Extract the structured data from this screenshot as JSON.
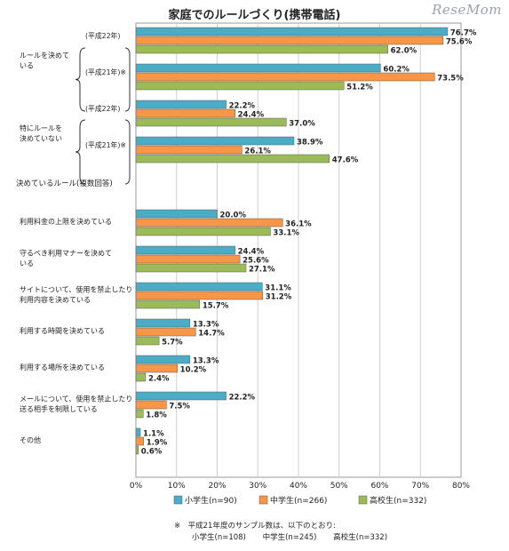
{
  "title": "家庭でのルールづくり(携帯電話)",
  "watermark": "ReseMom",
  "chart_data": {
    "type": "bar",
    "orientation": "horizontal",
    "title": "家庭でのルールづくり(携帯電話)",
    "xlim": [
      0,
      80
    ],
    "x_ticks": [
      "0%",
      "10%",
      "20%",
      "30%",
      "40%",
      "50%",
      "60%",
      "70%",
      "80%"
    ],
    "grid": true,
    "legend_placement": "bottom",
    "series": [
      {
        "name": "小学生",
        "n_label": "(n=90)",
        "color": "#4bacc6"
      },
      {
        "name": "中学生",
        "n_label": "(n=266)",
        "color": "#f79646"
      },
      {
        "name": "高校生",
        "n_label": "(n=332)",
        "color": "#9bbb59"
      }
    ],
    "groups": [
      {
        "label": "ルールを決めて\nいる",
        "year": "(平成22年)",
        "values": [
          76.7,
          75.6,
          62.0
        ],
        "labels": [
          "76.7%",
          "75.6%",
          "62.0%"
        ]
      },
      {
        "label": "",
        "year": "(平成21年)※",
        "values": [
          60.2,
          73.5,
          51.2
        ],
        "labels": [
          "60.2%",
          "73.5%",
          "51.2%"
        ]
      },
      {
        "label": "特にルールを\n決めていない",
        "year": "(平成22年)",
        "values": [
          22.2,
          24.4,
          37.0
        ],
        "labels": [
          "22.2%",
          "24.4%",
          "37.0%"
        ]
      },
      {
        "label": "",
        "year": "(平成21年)※",
        "values": [
          38.9,
          26.1,
          47.6
        ],
        "labels": [
          "38.9%",
          "26.1%",
          "47.6%"
        ]
      },
      {
        "label": "決めているルール(複数回答)",
        "header": true,
        "values": []
      },
      {
        "label": "利用料金の上限を決めている",
        "values": [
          20.0,
          36.1,
          33.1
        ],
        "labels": [
          "20.0%",
          "36.1%",
          "33.1%"
        ]
      },
      {
        "label": "守るべき利用マナーを決めて\nいる",
        "values": [
          24.4,
          25.6,
          27.1
        ],
        "labels": [
          "24.4%",
          "25.6%",
          "27.1%"
        ]
      },
      {
        "label": "サイトについて、使用を禁止したり\n利用内容を決めている",
        "values": [
          31.1,
          31.2,
          15.7
        ],
        "labels": [
          "31.1%",
          "31.2%",
          "15.7%"
        ]
      },
      {
        "label": "利用する時間を決めている",
        "values": [
          13.3,
          14.7,
          5.7
        ],
        "labels": [
          "13.3%",
          "14.7%",
          "5.7%"
        ]
      },
      {
        "label": "利用する場所を決めている",
        "values": [
          13.3,
          10.2,
          2.4
        ],
        "labels": [
          "13.3%",
          "10.2%",
          "2.4%"
        ]
      },
      {
        "label": "メールについて、使用を禁止したり\n送る相手を制限している",
        "values": [
          22.2,
          7.5,
          1.8
        ],
        "labels": [
          "22.2%",
          "7.5%",
          "1.8%"
        ]
      },
      {
        "label": "その他",
        "values": [
          1.1,
          1.9,
          0.6
        ],
        "labels": [
          "1.1%",
          "1.9%",
          "0.6%"
        ]
      }
    ]
  },
  "footnote": {
    "line1": "※　平成21年度のサンプル数は、以下のとおり:",
    "items": [
      "小学生(n=108)",
      "中学生(n=245)",
      "高校生(n=332)"
    ]
  }
}
